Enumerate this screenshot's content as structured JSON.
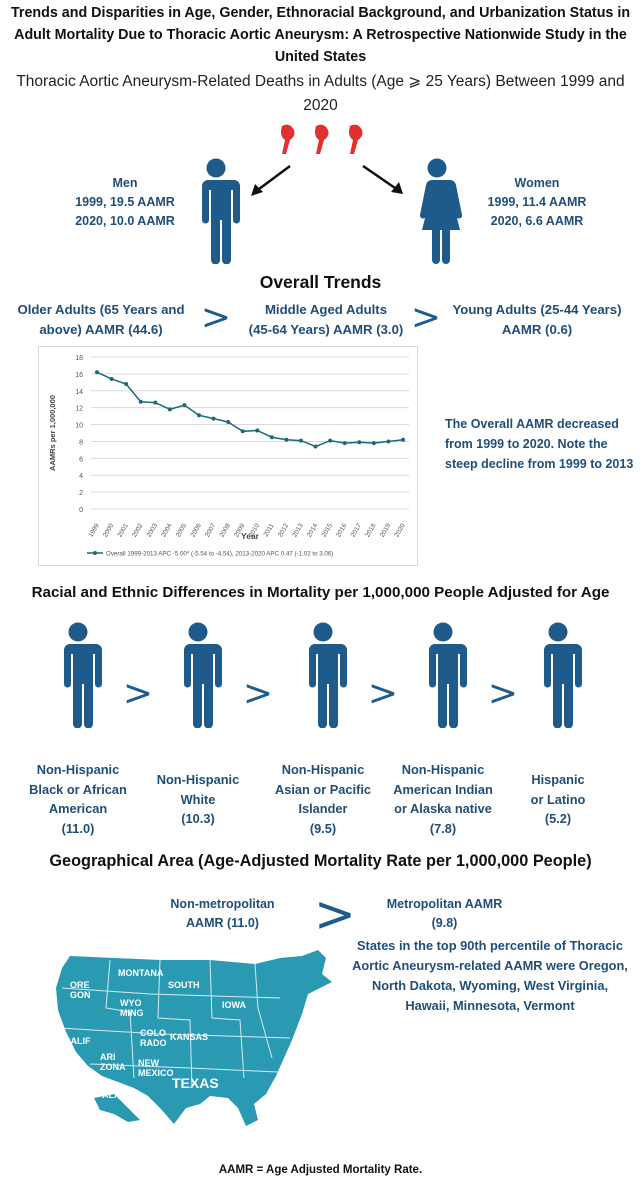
{
  "header": {
    "title_line1": "Trends and Disparities in Age, Gender, Ethnoracial Background, and Urbanization Status in",
    "title_line2": "Adult Mortality Due to Thoracic Aortic Aneurysm: A Retrospective Nationwide Study in the",
    "title_line3": "United States",
    "subtitle_line1": "Thoracic Aortic Aneurysm-Related Deaths in Adults (Age ⩾ 25 Years) Between 1999 and",
    "subtitle_line2": "2020"
  },
  "gender": {
    "men": {
      "label": "Men",
      "line1": "1999, 19.5 AAMR",
      "line2": "2020, 10.0 AAMR"
    },
    "women": {
      "label": "Women",
      "line1": "1999, 11.4 AAMR",
      "line2": "2020, 6.6 AAMR"
    }
  },
  "overall": {
    "heading": "Overall Trends",
    "older": {
      "line1": "Older Adults (65 Years and",
      "line2": "above) AAMR (44.6)"
    },
    "middle": {
      "line1": "Middle Aged Adults",
      "line2": "(45-64 Years) AAMR (3.0)"
    },
    "young": {
      "line1": "Young Adults (25-44 Years)",
      "line2": "AAMR (0.6)"
    },
    "gt_symbol": ">",
    "note_line1": "The Overall AAMR decreased",
    "note_line2": "from 1999 to 2020. Note the",
    "note_line3": "steep decline from 1999 to 2013"
  },
  "chart_data": {
    "type": "line",
    "x": [
      "1999",
      "2000",
      "2001",
      "2002",
      "2003",
      "2004",
      "2005",
      "2006",
      "2007",
      "2008",
      "2009",
      "2010",
      "2011",
      "2012",
      "2013",
      "2014",
      "2015",
      "2016",
      "2017",
      "2018",
      "2019",
      "2020"
    ],
    "series": [
      {
        "name": "Overall 1999-2013 APC -5.00* (-5.54 to -4.54), 2013-2020 APC 0.47 (-1.02 to 3.06)",
        "values": [
          16.2,
          15.4,
          14.8,
          12.7,
          12.6,
          11.8,
          12.3,
          11.1,
          10.7,
          10.3,
          9.2,
          9.3,
          8.5,
          8.2,
          8.1,
          7.4,
          8.1,
          7.8,
          7.9,
          7.8,
          8.0,
          8.2
        ]
      }
    ],
    "xlabel": "Year",
    "ylabel": "AAMRs per 1,000,000",
    "ylim": [
      0,
      18
    ],
    "yticks": [
      "0",
      "2",
      "4",
      "6",
      "8",
      "10",
      "12",
      "14",
      "16",
      "18"
    ],
    "grid": true,
    "legend": "bottom",
    "color": "#1a6a7a"
  },
  "race": {
    "heading": "Racial and Ethnic Differences in Mortality per 1,000,000 People Adjusted for Age",
    "groups": [
      {
        "lines": [
          "Non-Hispanic",
          "Black or African",
          "American",
          "(11.0)"
        ]
      },
      {
        "lines": [
          "Non-Hispanic",
          "White",
          "(10.3)"
        ]
      },
      {
        "lines": [
          "Non-Hispanic",
          "Asian or Pacific",
          "Islander",
          "(9.5)"
        ]
      },
      {
        "lines": [
          "Non-Hispanic",
          "American Indian",
          "or Alaska native",
          "(7.8)"
        ]
      },
      {
        "lines": [
          "Hispanic",
          "or Latino",
          "(5.2)"
        ]
      }
    ]
  },
  "geo": {
    "heading": "Geographical Area (Age-Adjusted Mortality Rate per 1,000,000 People)",
    "nonmetro": {
      "line1": "Non-metropolitan",
      "line2": "AAMR (11.0)"
    },
    "metro": {
      "line1": "Metropolitan AAMR",
      "line2": "(9.8)"
    },
    "states_note": [
      "States in the top 90th percentile of Thoracic",
      "Aortic Aneurysm-related AAMR were Oregon,",
      "North Dakota, Wyoming, West Virginia,",
      "Hawaii, Minnesota, Vermont"
    ],
    "map_color": "#2a9ab3"
  },
  "footer": "AAMR = Age Adjusted Mortality Rate."
}
